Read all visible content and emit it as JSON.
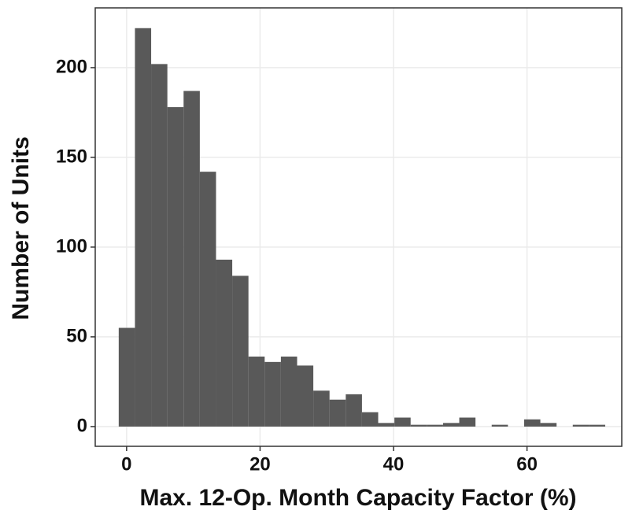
{
  "chart_data": {
    "type": "histogram",
    "x_label": "Max. 12-Op. Month Capacity Factor (%)",
    "y_label": "Number of Units",
    "bins": [
      -1.18,
      1.25,
      3.68,
      6.11,
      8.54,
      10.97,
      13.4,
      15.83,
      18.26,
      20.69,
      23.12,
      25.55,
      27.98,
      30.41,
      32.84,
      35.27,
      37.7,
      40.13,
      42.56,
      44.99,
      47.42,
      49.85,
      52.28,
      54.71,
      57.14,
      59.57,
      62.0,
      64.43,
      66.86,
      69.29,
      71.72
    ],
    "values": [
      55,
      222,
      202,
      178,
      187,
      142,
      93,
      84,
      39,
      36,
      39,
      34,
      20,
      15,
      18,
      8,
      2,
      5,
      1,
      1,
      2,
      5,
      0,
      1,
      0,
      4,
      2,
      0,
      1,
      1
    ],
    "color": "#595959",
    "xlim": [
      -4.7,
      74.2
    ],
    "xticks": [
      0,
      20,
      40,
      60
    ],
    "ylim": [
      -11,
      233.3
    ],
    "yticks": [
      0,
      50,
      100,
      150,
      200
    ],
    "grid": true
  }
}
